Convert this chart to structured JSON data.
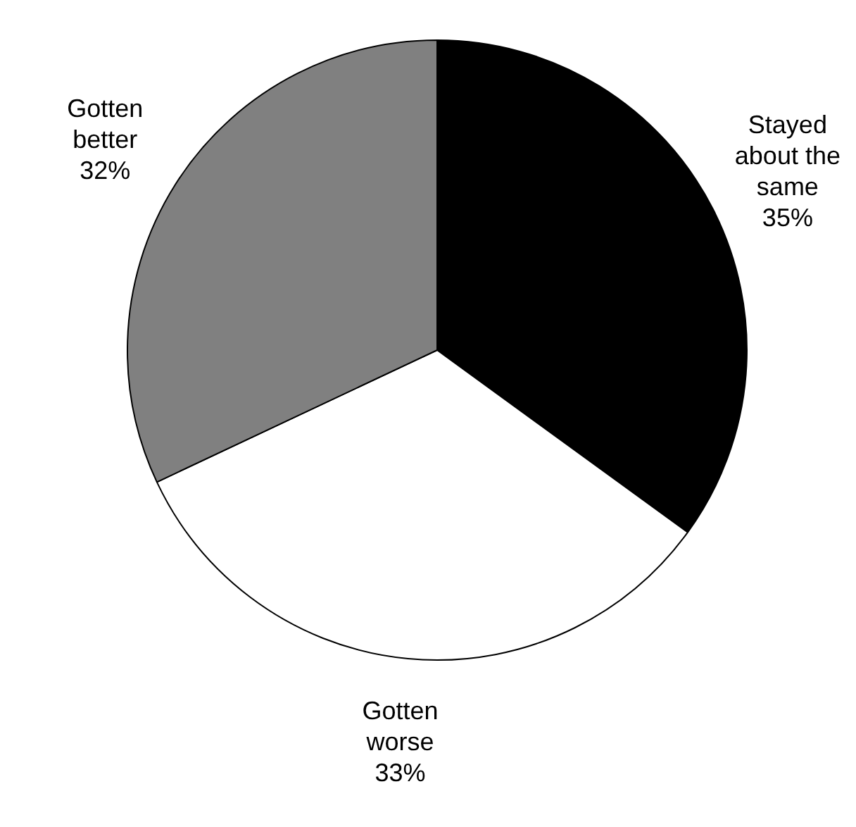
{
  "chart_data": {
    "type": "pie",
    "categories": [
      "Stayed about the same",
      "Gotten worse",
      "Gotten better"
    ],
    "values": [
      35,
      33,
      32
    ],
    "colors": [
      "#000000",
      "#ffffff",
      "#808080"
    ],
    "value_labels": [
      "35%",
      "33%",
      "32%"
    ]
  }
}
